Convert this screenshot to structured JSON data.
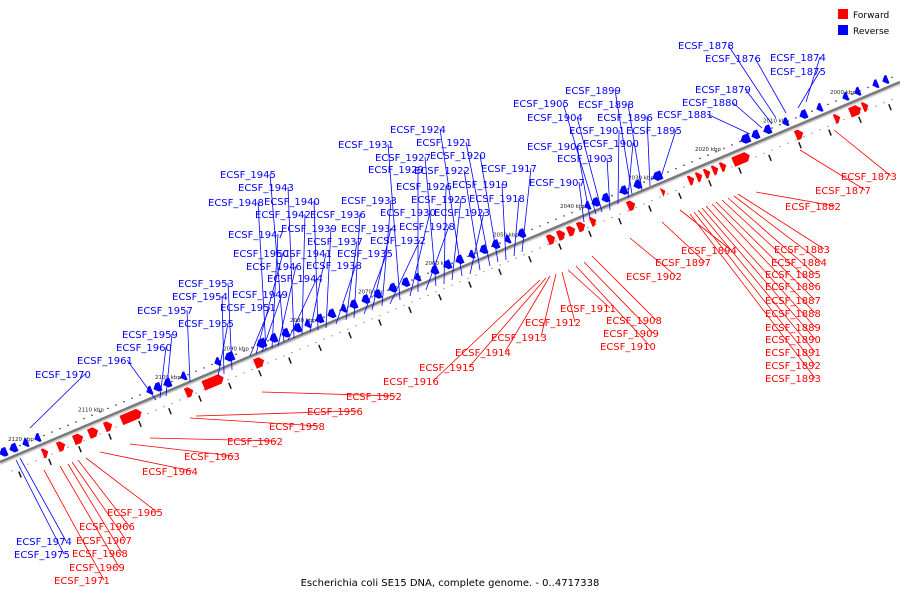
{
  "title": "Escherichia coli SE15 DNA, complete genome. - 0..4717338",
  "legend": [
    {
      "label": "Forward",
      "color": "#ff0000"
    },
    {
      "label": "Reverse",
      "color": "#0000ff"
    }
  ],
  "colors": {
    "forward": "#ff0000",
    "reverse": "#0000ff",
    "backbone": "#7a7a7a"
  },
  "ticks": [
    "2000 kbp",
    "2010 kbp",
    "2020 kbp",
    "2030 kbp",
    "2040 kbp",
    "2050 kbp",
    "2060 kbp",
    "2070 kbp",
    "2080 kbp",
    "2090 kbp",
    "2100 kbp",
    "2110 kbp",
    "2120 kbp"
  ],
  "reverse_labels": [
    "ECSF_1874",
    "ECSF_1875",
    "ECSF_1876",
    "ECSF_1878",
    "ECSF_1879",
    "ECSF_1880",
    "ECSF_1881",
    "ECSF_1895",
    "ECSF_1896",
    "ECSF_1898",
    "ECSF_1899",
    "ECSF_1900",
    "ECSF_1901",
    "ECSF_1903",
    "ECSF_1904",
    "ECSF_1905",
    "ECSF_1906",
    "ECSF_1907",
    "ECSF_1917",
    "ECSF_1918",
    "ECSF_1919",
    "ECSF_1920",
    "ECSF_1921",
    "ECSF_1922",
    "ECSF_1923",
    "ECSF_1924",
    "ECSF_1925",
    "ECSF_1926",
    "ECSF_1927",
    "ECSF_1928",
    "ECSF_1929",
    "ECSF_1930",
    "ECSF_1931",
    "ECSF_1932",
    "ECSF_1933",
    "ECSF_1934",
    "ECSF_1935",
    "ECSF_1936",
    "ECSF_1937",
    "ECSF_1938",
    "ECSF_1939",
    "ECSF_1940",
    "ECSF_1941",
    "ECSF_1942",
    "ECSF_1943",
    "ECSF_1944",
    "ECSF_1945",
    "ECSF_1946",
    "ECSF_1947",
    "ECSF_1948",
    "ECSF_1949",
    "ECSF_1950",
    "ECSF_1951",
    "ECSF_1953",
    "ECSF_1954",
    "ECSF_1955",
    "ECSF_1957",
    "ECSF_1959",
    "ECSF_1960",
    "ECSF_1961",
    "ECSF_1970",
    "ECSF_1974",
    "ECSF_1975"
  ],
  "forward_labels": [
    "ECSF_1873",
    "ECSF_1877",
    "ECSF_1882",
    "ECSF_1883",
    "ECSF_1884",
    "ECSF_1885",
    "ECSF_1886",
    "ECSF_1887",
    "ECSF_1888",
    "ECSF_1889",
    "ECSF_1890",
    "ECSF_1891",
    "ECSF_1892",
    "ECSF_1893",
    "ECSF_1894",
    "ECSF_1897",
    "ECSF_1902",
    "ECSF_1908",
    "ECSF_1909",
    "ECSF_1910",
    "ECSF_1911",
    "ECSF_1912",
    "ECSF_1913",
    "ECSF_1914",
    "ECSF_1915",
    "ECSF_1916",
    "ECSF_1952",
    "ECSF_1956",
    "ECSF_1958",
    "ECSF_1962",
    "ECSF_1963",
    "ECSF_1964",
    "ECSF_1965",
    "ECSF_1966",
    "ECSF_1967",
    "ECSF_1968",
    "ECSF_1969",
    "ECSF_1971"
  ]
}
